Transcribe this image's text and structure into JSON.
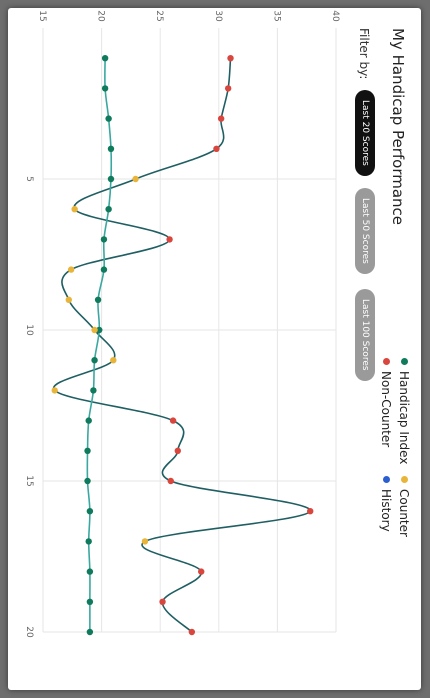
{
  "title": "My Handicap Performance",
  "filter": {
    "label": "Filter by:",
    "options": [
      "Last 20 Scores",
      "Last 50 Scores",
      "Last 100 Scores"
    ],
    "selected": "Last 20 Scores"
  },
  "legend": [
    {
      "label": "Handicap Index",
      "color": "#0f7a5c"
    },
    {
      "label": "Counter",
      "color": "#e8b53a"
    },
    {
      "label": "Non-Counter",
      "color": "#d9463e"
    },
    {
      "label": "History",
      "color": "#2b5fd0"
    }
  ],
  "chart_data": {
    "type": "line",
    "title": "My Handicap Performance",
    "xlabel": "",
    "ylabel": "",
    "xlim": [
      0,
      20
    ],
    "ylim": [
      15,
      40
    ],
    "xticks": [
      5,
      10,
      15,
      20
    ],
    "yticks": [
      15,
      20,
      25,
      30,
      35,
      40
    ],
    "grid": true,
    "legend_position": "top-right",
    "series": [
      {
        "name": "Handicap Index",
        "color": "#0f7a5c",
        "line_color": "#3aa8a0",
        "x": [
          1,
          2,
          3,
          4,
          5,
          6,
          7,
          8,
          9,
          10,
          11,
          12,
          13,
          14,
          15,
          16,
          17,
          18,
          19,
          20
        ],
        "y": [
          20.3,
          20.3,
          20.6,
          20.8,
          20.8,
          20.6,
          20.2,
          20.2,
          19.7,
          19.8,
          19.4,
          19.3,
          18.9,
          18.8,
          18.8,
          19.0,
          18.9,
          19.0,
          19.0,
          19.0
        ]
      },
      {
        "name": "",
        "color": "#1f5f63",
        "x": [
          1,
          2,
          3,
          4,
          5,
          6,
          7,
          8,
          9,
          10,
          11,
          12,
          13,
          14,
          15,
          16,
          17,
          18,
          19,
          20
        ],
        "y": [
          31.0,
          30.8,
          30.2,
          29.8,
          22.9,
          17.7,
          25.8,
          17.4,
          17.2,
          19.4,
          21.0,
          16.0,
          26.1,
          26.5,
          25.9,
          37.8,
          23.7,
          28.5,
          25.2,
          27.7
        ],
        "point_types": [
          "Non-Counter",
          "Non-Counter",
          "Non-Counter",
          "Non-Counter",
          "Counter",
          "Counter",
          "Non-Counter",
          "Counter",
          "Counter",
          "Counter",
          "Counter",
          "Counter",
          "Non-Counter",
          "Non-Counter",
          "Non-Counter",
          "Non-Counter",
          "Counter",
          "Non-Counter",
          "Non-Counter",
          "Non-Counter"
        ]
      }
    ]
  }
}
